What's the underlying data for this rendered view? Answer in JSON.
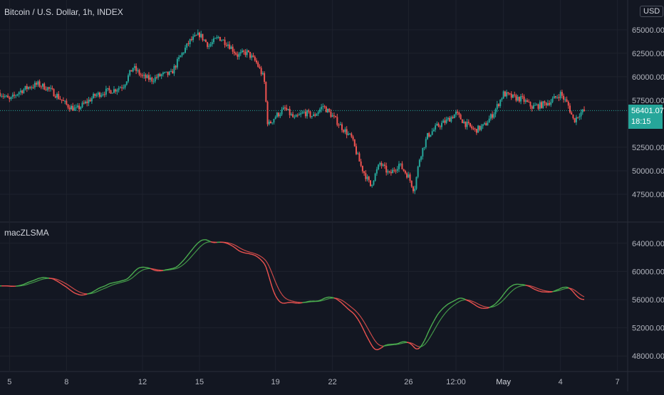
{
  "header": {
    "symbol": "Bitcoin / U.S. Dollar, 1h, INDEX",
    "currency": "USD"
  },
  "last_price": {
    "value": "56401.07",
    "countdown": "18:15"
  },
  "colors": {
    "background": "#131722",
    "grid": "#1e222d",
    "text": "#b2b5be",
    "up": "#26a69a",
    "down": "#ef5350",
    "signal_green": "#4caf50",
    "signal_red": "#ef5350",
    "badge": "#26a69a"
  },
  "chart_data": [
    {
      "type": "candlestick",
      "title": "Bitcoin / U.S. Dollar, 1h, INDEX",
      "ylim": [
        45000,
        66500
      ],
      "y_ticks": [
        "65000.00",
        "62500.00",
        "60000.00",
        "57500.00",
        "52500.00",
        "50000.00",
        "47500.00"
      ],
      "y_tick_values": [
        65000,
        62500,
        60000,
        57500,
        52500,
        50000,
        47500
      ],
      "x_ticks": [
        "5",
        "8",
        "12",
        "15",
        "19",
        "22",
        "26",
        "12:00",
        "May",
        "4",
        "7"
      ],
      "x_tick_days": [
        5,
        8,
        12,
        15,
        19,
        22,
        26,
        28.5,
        31,
        34,
        37
      ],
      "x_range_days": [
        4.5,
        37.5
      ],
      "last_price": 56401.07,
      "close_path": [
        {
          "day": 4.5,
          "price": 58300
        },
        {
          "day": 5.0,
          "price": 57500
        },
        {
          "day": 5.5,
          "price": 58400
        },
        {
          "day": 6.0,
          "price": 58900
        },
        {
          "day": 6.5,
          "price": 59200
        },
        {
          "day": 7.0,
          "price": 58800
        },
        {
          "day": 7.5,
          "price": 58000
        },
        {
          "day": 8.0,
          "price": 57000
        },
        {
          "day": 8.5,
          "price": 56500
        },
        {
          "day": 9.0,
          "price": 57200
        },
        {
          "day": 9.5,
          "price": 58000
        },
        {
          "day": 10.0,
          "price": 58400
        },
        {
          "day": 10.5,
          "price": 58600
        },
        {
          "day": 11.0,
          "price": 59100
        },
        {
          "day": 11.5,
          "price": 61000
        },
        {
          "day": 12.0,
          "price": 60000
        },
        {
          "day": 12.5,
          "price": 59700
        },
        {
          "day": 13.0,
          "price": 60200
        },
        {
          "day": 13.5,
          "price": 60300
        },
        {
          "day": 14.0,
          "price": 62200
        },
        {
          "day": 14.5,
          "price": 63800
        },
        {
          "day": 15.0,
          "price": 64500
        },
        {
          "day": 15.5,
          "price": 63300
        },
        {
          "day": 16.0,
          "price": 64200
        },
        {
          "day": 16.5,
          "price": 63500
        },
        {
          "day": 17.0,
          "price": 62300
        },
        {
          "day": 17.5,
          "price": 62600
        },
        {
          "day": 18.0,
          "price": 61500
        },
        {
          "day": 18.4,
          "price": 59800
        },
        {
          "day": 18.6,
          "price": 54800
        },
        {
          "day": 19.0,
          "price": 55800
        },
        {
          "day": 19.5,
          "price": 56600
        },
        {
          "day": 20.0,
          "price": 55500
        },
        {
          "day": 20.5,
          "price": 56200
        },
        {
          "day": 21.0,
          "price": 55800
        },
        {
          "day": 21.5,
          "price": 56900
        },
        {
          "day": 22.0,
          "price": 55800
        },
        {
          "day": 22.5,
          "price": 54600
        },
        {
          "day": 23.0,
          "price": 53500
        },
        {
          "day": 23.5,
          "price": 50500
        },
        {
          "day": 24.0,
          "price": 48400
        },
        {
          "day": 24.5,
          "price": 50800
        },
        {
          "day": 25.0,
          "price": 49600
        },
        {
          "day": 25.5,
          "price": 50700
        },
        {
          "day": 26.0,
          "price": 49400
        },
        {
          "day": 26.3,
          "price": 47900
        },
        {
          "day": 26.6,
          "price": 51500
        },
        {
          "day": 27.0,
          "price": 53700
        },
        {
          "day": 27.5,
          "price": 54700
        },
        {
          "day": 28.0,
          "price": 55300
        },
        {
          "day": 28.5,
          "price": 56100
        },
        {
          "day": 29.0,
          "price": 55000
        },
        {
          "day": 29.5,
          "price": 54300
        },
        {
          "day": 30.0,
          "price": 54800
        },
        {
          "day": 30.5,
          "price": 56200
        },
        {
          "day": 31.0,
          "price": 58200
        },
        {
          "day": 31.5,
          "price": 57800
        },
        {
          "day": 32.0,
          "price": 57600
        },
        {
          "day": 32.5,
          "price": 56800
        },
        {
          "day": 33.0,
          "price": 57000
        },
        {
          "day": 33.5,
          "price": 57400
        },
        {
          "day": 34.0,
          "price": 58200
        },
        {
          "day": 34.4,
          "price": 57000
        },
        {
          "day": 34.7,
          "price": 55300
        },
        {
          "day": 35.0,
          "price": 56100
        },
        {
          "day": 35.3,
          "price": 56401
        }
      ]
    },
    {
      "type": "line",
      "title": "macZLSMA",
      "ylim": [
        46000,
        66000
      ],
      "y_ticks": [
        "64000.00",
        "60000.00",
        "56000.00",
        "52000.00",
        "48000.00"
      ],
      "y_tick_values": [
        64000,
        60000,
        56000,
        52000,
        48000
      ],
      "series": [
        {
          "color": "#4caf50"
        },
        {
          "color": "#ef5350"
        }
      ]
    }
  ]
}
